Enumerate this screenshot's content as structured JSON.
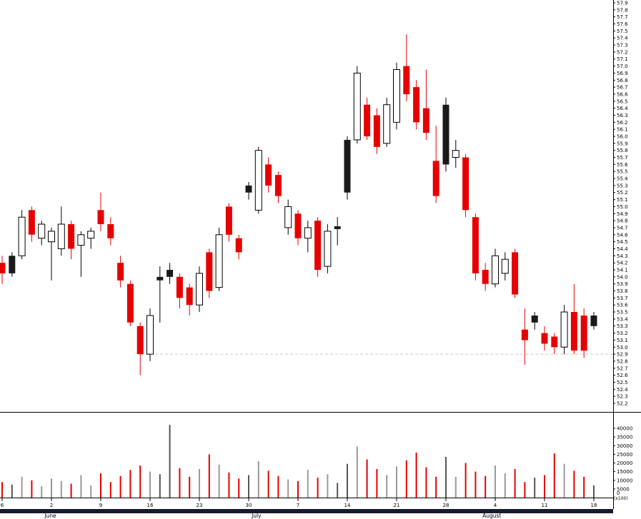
{
  "chart_data": {
    "type": "candlestick",
    "title": "",
    "layout": {
      "grid": false,
      "legend": false,
      "volume_pane": true,
      "price_axis_side": "right"
    },
    "price_axis": {
      "min": 52.2,
      "max": 57.9,
      "step": 0.1,
      "labels": [
        "57.9",
        "57.8",
        "57.7",
        "57.6",
        "57.5",
        "57.4",
        "57.3",
        "57.2",
        "57.1",
        "57.0",
        "56.9",
        "56.8",
        "56.7",
        "56.6",
        "56.5",
        "56.4",
        "56.3",
        "56.2",
        "56.1",
        "56.0",
        "55.9",
        "55.8",
        "55.7",
        "55.6",
        "55.5",
        "55.4",
        "55.3",
        "55.2",
        "55.1",
        "55.0",
        "54.9",
        "54.8",
        "54.7",
        "54.6",
        "54.5",
        "54.4",
        "54.3",
        "54.2",
        "54.1",
        "54.0",
        "53.9",
        "53.8",
        "53.7",
        "53.6",
        "53.5",
        "53.4",
        "53.3",
        "53.2",
        "53.1",
        "53.0",
        "52.9",
        "52.8",
        "52.7",
        "52.6",
        "52.5",
        "52.4",
        "52.3",
        "52.2"
      ]
    },
    "volume_axis": {
      "max": 40000,
      "labels": [
        "40000",
        "35000",
        "30000",
        "25000",
        "20000",
        "15000",
        "10000",
        "5000"
      ],
      "zero_label": "0",
      "unit_label": "(x100)"
    },
    "x_axis": {
      "week_ticks": [
        {
          "label": "6",
          "i": 0
        },
        {
          "label": "2",
          "i": 5
        },
        {
          "label": "9",
          "i": 10
        },
        {
          "label": "16",
          "i": 15
        },
        {
          "label": "23",
          "i": 20
        },
        {
          "label": "30",
          "i": 25
        },
        {
          "label": "7",
          "i": 30
        },
        {
          "label": "14",
          "i": 35
        },
        {
          "label": "21",
          "i": 40
        },
        {
          "label": "28",
          "i": 45
        },
        {
          "label": "4",
          "i": 50
        },
        {
          "label": "11",
          "i": 55
        },
        {
          "label": "18",
          "i": 60
        }
      ],
      "months": [
        {
          "label": "June",
          "i": 4.3
        },
        {
          "label": "July",
          "i": 25.3
        },
        {
          "label": "August",
          "i": 48.7
        }
      ]
    },
    "reference_line": {
      "price": 52.9,
      "style": "dashed"
    },
    "colors": {
      "down": "#e60000",
      "up_fill": "#ffffff",
      "up_stroke": "#000000",
      "dark": "#1a1a1a",
      "volume_down": "#e60000",
      "volume_up": "#999999",
      "volume_dark": "#555555",
      "reference": "#c8c8c8",
      "scrollbar": "#1a1a2e"
    },
    "candles": [
      {
        "d": "May 26",
        "o": 54.2,
        "h": 54.3,
        "l": 53.9,
        "c": 54.05,
        "k": "red",
        "v": 9000
      },
      {
        "d": "May 27",
        "o": 54.05,
        "h": 54.35,
        "l": 54.0,
        "c": 54.3,
        "k": "black",
        "v": 7500
      },
      {
        "d": "May 28",
        "o": 54.3,
        "h": 54.95,
        "l": 54.25,
        "c": 54.85,
        "k": "white",
        "v": 12000
      },
      {
        "d": "May 29",
        "o": 54.95,
        "h": 55.0,
        "l": 54.5,
        "c": 54.6,
        "k": "red",
        "v": 10000
      },
      {
        "d": "May 30",
        "o": 54.55,
        "h": 54.8,
        "l": 54.45,
        "c": 54.75,
        "k": "white",
        "v": 6500
      },
      {
        "d": "Jun 2",
        "o": 54.5,
        "h": 54.7,
        "l": 53.95,
        "c": 54.65,
        "k": "white",
        "v": 11000
      },
      {
        "d": "Jun 3",
        "o": 54.4,
        "h": 55.0,
        "l": 54.3,
        "c": 54.75,
        "k": "white",
        "v": 9500
      },
      {
        "d": "Jun 4",
        "o": 54.75,
        "h": 54.8,
        "l": 54.25,
        "c": 54.4,
        "k": "red",
        "v": 8000
      },
      {
        "d": "Jun 5",
        "o": 54.45,
        "h": 54.65,
        "l": 54.0,
        "c": 54.6,
        "k": "white",
        "v": 13000
      },
      {
        "d": "Jun 6",
        "o": 54.55,
        "h": 54.7,
        "l": 54.4,
        "c": 54.65,
        "k": "white",
        "v": 7000
      },
      {
        "d": "Jun 9",
        "o": 54.95,
        "h": 55.2,
        "l": 54.65,
        "c": 54.75,
        "k": "red",
        "v": 14000
      },
      {
        "d": "Jun 10",
        "o": 54.75,
        "h": 54.85,
        "l": 54.45,
        "c": 54.55,
        "k": "red",
        "v": 9000
      },
      {
        "d": "Jun 11",
        "o": 54.2,
        "h": 54.3,
        "l": 53.85,
        "c": 53.95,
        "k": "red",
        "v": 12500
      },
      {
        "d": "Jun 12",
        "o": 53.9,
        "h": 53.95,
        "l": 53.3,
        "c": 53.35,
        "k": "red",
        "v": 16000
      },
      {
        "d": "Jun 13",
        "o": 53.3,
        "h": 53.35,
        "l": 52.6,
        "c": 52.9,
        "k": "red",
        "v": 18500
      },
      {
        "d": "Jun 16",
        "o": 52.9,
        "h": 53.55,
        "l": 52.8,
        "c": 53.45,
        "k": "white",
        "v": 15000
      },
      {
        "d": "Jun 17",
        "o": 53.95,
        "h": 54.15,
        "l": 53.35,
        "c": 54.0,
        "k": "black",
        "v": 13500
      },
      {
        "d": "Jun 18",
        "o": 54.0,
        "h": 54.2,
        "l": 53.9,
        "c": 54.1,
        "k": "black",
        "v": 42000
      },
      {
        "d": "Jun 19",
        "o": 54.0,
        "h": 54.05,
        "l": 53.55,
        "c": 53.7,
        "k": "red",
        "v": 17000
      },
      {
        "d": "Jun 20",
        "o": 53.85,
        "h": 53.9,
        "l": 53.45,
        "c": 53.6,
        "k": "red",
        "v": 12000
      },
      {
        "d": "Jun 23",
        "o": 53.6,
        "h": 54.15,
        "l": 53.5,
        "c": 54.05,
        "k": "white",
        "v": 16500
      },
      {
        "d": "Jun 24",
        "o": 54.35,
        "h": 54.4,
        "l": 53.7,
        "c": 53.8,
        "k": "red",
        "v": 25000
      },
      {
        "d": "Jun 25",
        "o": 53.85,
        "h": 54.7,
        "l": 53.8,
        "c": 54.6,
        "k": "white",
        "v": 19000
      },
      {
        "d": "Jun 26",
        "o": 55.0,
        "h": 55.05,
        "l": 54.5,
        "c": 54.6,
        "k": "red",
        "v": 14500
      },
      {
        "d": "Jun 27",
        "o": 54.55,
        "h": 54.6,
        "l": 54.25,
        "c": 54.35,
        "k": "red",
        "v": 11000
      },
      {
        "d": "Jun 30",
        "o": 55.2,
        "h": 55.35,
        "l": 55.1,
        "c": 55.3,
        "k": "black",
        "v": 13000
      },
      {
        "d": "Jul 1",
        "o": 54.95,
        "h": 55.85,
        "l": 54.9,
        "c": 55.8,
        "k": "white",
        "v": 21000
      },
      {
        "d": "Jul 2",
        "o": 55.6,
        "h": 55.7,
        "l": 55.2,
        "c": 55.3,
        "k": "red",
        "v": 15500
      },
      {
        "d": "Jul 3",
        "o": 55.45,
        "h": 55.5,
        "l": 55.05,
        "c": 55.15,
        "k": "red",
        "v": 12500
      },
      {
        "d": "Jul 4",
        "o": 54.7,
        "h": 55.1,
        "l": 54.6,
        "c": 55.0,
        "k": "white",
        "v": 10500
      },
      {
        "d": "Jul 7",
        "o": 54.9,
        "h": 54.95,
        "l": 54.45,
        "c": 54.55,
        "k": "red",
        "v": 9500
      },
      {
        "d": "Jul 8",
        "o": 54.55,
        "h": 54.8,
        "l": 54.35,
        "c": 54.7,
        "k": "white",
        "v": 16000
      },
      {
        "d": "Jul 9",
        "o": 54.8,
        "h": 54.85,
        "l": 54.0,
        "c": 54.1,
        "k": "red",
        "v": 11500
      },
      {
        "d": "Jul 10",
        "o": 54.15,
        "h": 54.75,
        "l": 54.05,
        "c": 54.65,
        "k": "white",
        "v": 13500
      },
      {
        "d": "Jul 11",
        "o": 54.68,
        "h": 54.85,
        "l": 54.45,
        "c": 54.72,
        "k": "black",
        "v": 8500
      },
      {
        "d": "Jul 14",
        "o": 55.95,
        "h": 56.0,
        "l": 55.1,
        "c": 55.2,
        "k": "black",
        "v": 19500
      },
      {
        "d": "Jul 15",
        "o": 55.95,
        "h": 57.0,
        "l": 55.9,
        "c": 56.9,
        "k": "white",
        "v": 29500
      },
      {
        "d": "Jul 16",
        "o": 56.45,
        "h": 56.55,
        "l": 55.95,
        "c": 56.0,
        "k": "red",
        "v": 22000
      },
      {
        "d": "Jul 17",
        "o": 56.3,
        "h": 56.4,
        "l": 55.75,
        "c": 55.85,
        "k": "red",
        "v": 16500
      },
      {
        "d": "Jul 18",
        "o": 55.9,
        "h": 56.55,
        "l": 55.85,
        "c": 56.45,
        "k": "white",
        "v": 13000
      },
      {
        "d": "Jul 21",
        "o": 56.2,
        "h": 57.05,
        "l": 56.1,
        "c": 56.95,
        "k": "white",
        "v": 18000
      },
      {
        "d": "Jul 22",
        "o": 57.0,
        "h": 57.45,
        "l": 56.5,
        "c": 56.6,
        "k": "red",
        "v": 21500
      },
      {
        "d": "Jul 23",
        "o": 56.7,
        "h": 56.8,
        "l": 56.1,
        "c": 56.2,
        "k": "red",
        "v": 26000
      },
      {
        "d": "Jul 24",
        "o": 56.4,
        "h": 56.95,
        "l": 55.95,
        "c": 56.05,
        "k": "red",
        "v": 17500
      },
      {
        "d": "Jul 25",
        "o": 55.65,
        "h": 56.15,
        "l": 55.05,
        "c": 55.15,
        "k": "red",
        "v": 12000
      },
      {
        "d": "Jul 28",
        "o": 56.45,
        "h": 56.55,
        "l": 55.5,
        "c": 55.6,
        "k": "black",
        "v": 23500
      },
      {
        "d": "Jul 29",
        "o": 55.7,
        "h": 55.95,
        "l": 55.55,
        "c": 55.8,
        "k": "white",
        "v": 12000
      },
      {
        "d": "Jul 30",
        "o": 55.7,
        "h": 55.75,
        "l": 54.85,
        "c": 54.95,
        "k": "red",
        "v": 20000
      },
      {
        "d": "Jul 31",
        "o": 54.85,
        "h": 54.9,
        "l": 53.95,
        "c": 54.05,
        "k": "red",
        "v": 15000
      },
      {
        "d": "Aug 1",
        "o": 54.1,
        "h": 54.2,
        "l": 53.8,
        "c": 53.9,
        "k": "red",
        "v": 12500
      },
      {
        "d": "Aug 4",
        "o": 53.9,
        "h": 54.4,
        "l": 53.85,
        "c": 54.3,
        "k": "white",
        "v": 18500
      },
      {
        "d": "Aug 5",
        "o": 54.05,
        "h": 54.35,
        "l": 53.95,
        "c": 54.25,
        "k": "white",
        "v": 14000
      },
      {
        "d": "Aug 6",
        "o": 54.35,
        "h": 54.4,
        "l": 53.7,
        "c": 53.75,
        "k": "red",
        "v": 16500
      },
      {
        "d": "Aug 7",
        "o": 53.25,
        "h": 53.55,
        "l": 52.75,
        "c": 53.1,
        "k": "red",
        "v": 9000
      },
      {
        "d": "Aug 8",
        "o": 53.35,
        "h": 53.5,
        "l": 53.25,
        "c": 53.45,
        "k": "black",
        "v": 11500
      },
      {
        "d": "Aug 11",
        "o": 53.2,
        "h": 53.3,
        "l": 52.95,
        "c": 53.05,
        "k": "red",
        "v": 13000
      },
      {
        "d": "Aug 12",
        "o": 53.15,
        "h": 53.2,
        "l": 52.9,
        "c": 53.0,
        "k": "red",
        "v": 25500
      },
      {
        "d": "Aug 13",
        "o": 53.0,
        "h": 53.6,
        "l": 52.9,
        "c": 53.5,
        "k": "white",
        "v": 19500
      },
      {
        "d": "Aug 14",
        "o": 53.5,
        "h": 53.9,
        "l": 52.9,
        "c": 52.95,
        "k": "red",
        "v": 15500
      },
      {
        "d": "Aug 15",
        "o": 53.45,
        "h": 53.55,
        "l": 52.85,
        "c": 52.95,
        "k": "red",
        "v": 12000
      },
      {
        "d": "Aug 18",
        "o": 53.3,
        "h": 53.5,
        "l": 53.25,
        "c": 53.45,
        "k": "black",
        "v": 7000
      }
    ]
  }
}
